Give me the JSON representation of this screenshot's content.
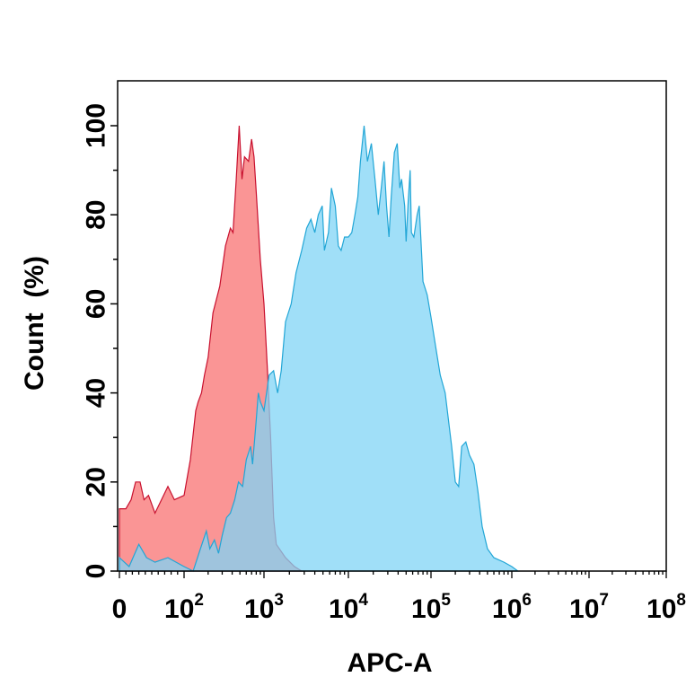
{
  "chart_data": {
    "type": "area",
    "title": "",
    "xlabel": "APC-A",
    "ylabel": "Count  (%)",
    "x_scale": "biexponential",
    "xlim": [
      0,
      100000000
    ],
    "ylim": [
      0,
      100
    ],
    "grid": false,
    "y_ticks": [
      {
        "value": 0,
        "label": "0"
      },
      {
        "value": 20,
        "label": "20"
      },
      {
        "value": 40,
        "label": "40"
      },
      {
        "value": 60,
        "label": "60"
      },
      {
        "value": 80,
        "label": "80"
      },
      {
        "value": 100,
        "label": "100"
      }
    ],
    "x_ticks": [
      {
        "value": 0,
        "base": "0",
        "exp": ""
      },
      {
        "value": 100,
        "base": "10",
        "exp": "2"
      },
      {
        "value": 1000,
        "base": "10",
        "exp": "3"
      },
      {
        "value": 10000,
        "base": "10",
        "exp": "4"
      },
      {
        "value": 100000,
        "base": "10",
        "exp": "5"
      },
      {
        "value": 1000000,
        "base": "10",
        "exp": "6"
      },
      {
        "value": 10000000,
        "base": "10",
        "exp": "7"
      },
      {
        "value": 100000000,
        "base": "10",
        "exp": "8"
      }
    ],
    "series": [
      {
        "color": "#f87272",
        "stroke": "#c8102e",
        "points": [
          [
            0,
            14
          ],
          [
            10,
            14
          ],
          [
            18,
            16
          ],
          [
            25,
            20
          ],
          [
            32,
            20
          ],
          [
            38,
            16
          ],
          [
            45,
            17
          ],
          [
            55,
            13
          ],
          [
            65,
            16
          ],
          [
            75,
            19
          ],
          [
            85,
            16
          ],
          [
            100,
            17
          ],
          [
            120,
            25
          ],
          [
            140,
            36
          ],
          [
            150,
            38
          ],
          [
            165,
            40
          ],
          [
            180,
            44
          ],
          [
            200,
            48
          ],
          [
            230,
            58
          ],
          [
            280,
            64
          ],
          [
            330,
            73
          ],
          [
            380,
            77
          ],
          [
            410,
            76
          ],
          [
            450,
            88
          ],
          [
            490,
            100
          ],
          [
            530,
            88
          ],
          [
            570,
            93
          ],
          [
            640,
            92
          ],
          [
            700,
            97
          ],
          [
            750,
            93
          ],
          [
            800,
            85
          ],
          [
            900,
            70
          ],
          [
            1000,
            60
          ],
          [
            1100,
            45
          ],
          [
            1200,
            30
          ],
          [
            1300,
            12
          ],
          [
            1400,
            6
          ],
          [
            1800,
            3
          ],
          [
            2300,
            1
          ],
          [
            2800,
            0
          ]
        ]
      },
      {
        "color": "#80d4f6",
        "stroke": "#22a6d6",
        "points": [
          [
            0,
            3
          ],
          [
            15,
            1
          ],
          [
            30,
            6
          ],
          [
            42,
            3
          ],
          [
            55,
            2
          ],
          [
            75,
            3
          ],
          [
            100,
            1
          ],
          [
            130,
            0
          ],
          [
            160,
            5
          ],
          [
            190,
            9
          ],
          [
            210,
            5
          ],
          [
            240,
            7
          ],
          [
            270,
            4
          ],
          [
            300,
            8
          ],
          [
            340,
            12
          ],
          [
            380,
            13
          ],
          [
            430,
            16
          ],
          [
            480,
            20
          ],
          [
            540,
            19
          ],
          [
            600,
            25
          ],
          [
            680,
            28
          ],
          [
            720,
            24
          ],
          [
            800,
            34
          ],
          [
            850,
            40
          ],
          [
            900,
            38
          ],
          [
            1000,
            36
          ],
          [
            1150,
            44
          ],
          [
            1300,
            45
          ],
          [
            1450,
            40
          ],
          [
            1600,
            45
          ],
          [
            1800,
            56
          ],
          [
            2100,
            60
          ],
          [
            2400,
            67
          ],
          [
            2800,
            72
          ],
          [
            3200,
            77
          ],
          [
            3600,
            79
          ],
          [
            4000,
            76
          ],
          [
            4400,
            80
          ],
          [
            4900,
            82
          ],
          [
            5200,
            72
          ],
          [
            5800,
            76
          ],
          [
            6300,
            86
          ],
          [
            7000,
            82
          ],
          [
            7600,
            73
          ],
          [
            8200,
            72
          ],
          [
            9000,
            75
          ],
          [
            10000,
            75
          ],
          [
            11000,
            76
          ],
          [
            12000,
            80
          ],
          [
            13000,
            84
          ],
          [
            14000,
            92
          ],
          [
            15500,
            100
          ],
          [
            17000,
            92
          ],
          [
            19000,
            96
          ],
          [
            21000,
            88
          ],
          [
            23000,
            80
          ],
          [
            25000,
            86
          ],
          [
            27000,
            92
          ],
          [
            29000,
            82
          ],
          [
            31000,
            75
          ],
          [
            33000,
            84
          ],
          [
            36000,
            94
          ],
          [
            39000,
            96
          ],
          [
            42000,
            86
          ],
          [
            44000,
            88
          ],
          [
            48000,
            82
          ],
          [
            50000,
            74
          ],
          [
            53000,
            83
          ],
          [
            56000,
            90
          ],
          [
            58000,
            76
          ],
          [
            62000,
            75
          ],
          [
            68000,
            80
          ],
          [
            72000,
            82
          ],
          [
            80000,
            65
          ],
          [
            90000,
            62
          ],
          [
            100000,
            57
          ],
          [
            115000,
            50
          ],
          [
            130000,
            44
          ],
          [
            150000,
            40
          ],
          [
            180000,
            28
          ],
          [
            200000,
            20
          ],
          [
            220000,
            19
          ],
          [
            240000,
            28
          ],
          [
            270000,
            29
          ],
          [
            300000,
            26
          ],
          [
            340000,
            24
          ],
          [
            380000,
            18
          ],
          [
            430000,
            10
          ],
          [
            500000,
            5
          ],
          [
            600000,
            3
          ],
          [
            800000,
            2
          ],
          [
            1000000,
            1
          ],
          [
            1200000,
            0
          ]
        ]
      }
    ]
  }
}
